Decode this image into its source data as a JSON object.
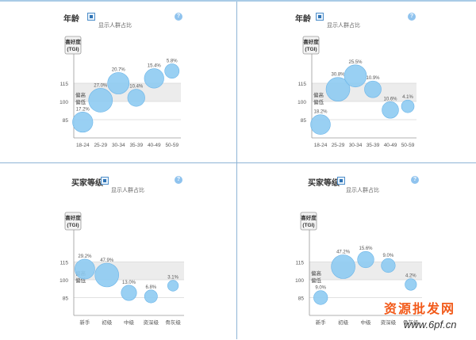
{
  "colors": {
    "bubble": "#8ecbf2",
    "bubble_stroke": "#6ab4e8",
    "band": "#ececec",
    "grid": "#d8d8d8",
    "watermark": "#f25a1a"
  },
  "watermark": {
    "cn": "资源批发网",
    "url": "www.6pf.cn"
  },
  "chart_data": [
    {
      "type": "scatter",
      "title": "年龄",
      "subtitle": "显示人群占比",
      "ylabel": "喜好度\n(TGI)",
      "ylabel_lines": [
        "喜好度",
        "(TGI)"
      ],
      "yticks": [
        85,
        100,
        115
      ],
      "band_labels": [
        "偏高",
        "偏低"
      ],
      "categories": [
        "18-24",
        "25-29",
        "30-34",
        "35-39",
        "40-49",
        "50-59"
      ],
      "tgi": [
        83,
        101,
        115,
        103,
        119,
        125
      ],
      "share_labels": [
        "17.2%",
        "27.0%",
        "20.7%",
        "10.4%",
        "15.4%",
        "5.8%"
      ],
      "share": [
        17.2,
        27.0,
        20.7,
        10.4,
        15.4,
        5.8
      ]
    },
    {
      "type": "scatter",
      "title": "年龄",
      "subtitle": "显示人群占比",
      "ylabel": "喜好度\n(TGI)",
      "ylabel_lines": [
        "喜好度",
        "(TGI)"
      ],
      "yticks": [
        85,
        100,
        115
      ],
      "band_labels": [
        "偏高",
        "偏低"
      ],
      "categories": [
        "18-24",
        "25-29",
        "30-34",
        "35-39",
        "40-49",
        "50-59"
      ],
      "tgi": [
        81,
        110,
        121,
        110,
        93,
        96
      ],
      "share_labels": [
        "18.2%",
        "30.8%",
        "25.5%",
        "10.9%",
        "10.6%",
        "4.1%"
      ],
      "share": [
        18.2,
        30.8,
        25.5,
        10.9,
        10.6,
        4.1
      ]
    },
    {
      "type": "scatter",
      "title": "买家等级",
      "subtitle": "显示人群占比",
      "ylabel": "喜好度\n(TGI)",
      "ylabel_lines": [
        "喜好度",
        "(TGI)"
      ],
      "yticks": [
        85,
        100,
        115
      ],
      "band_labels": [
        "偏高",
        "偏低"
      ],
      "categories": [
        "新手",
        "初级",
        "中级",
        "资深级",
        "骨灰级"
      ],
      "tgi": [
        109,
        104,
        89,
        86,
        95
      ],
      "share_labels": [
        "29.2%",
        "47.9%",
        "13.0%",
        "6.8%",
        "3.1%"
      ],
      "share": [
        29.2,
        47.9,
        13.0,
        6.8,
        3.1
      ]
    },
    {
      "type": "scatter",
      "title": "买家等级",
      "subtitle": "显示人群占比",
      "ylabel": "喜好度\n(TGI)",
      "ylabel_lines": [
        "喜好度",
        "(TGI)"
      ],
      "yticks": [
        85,
        100,
        115
      ],
      "band_labels": [
        "偏高",
        "偏低"
      ],
      "categories": [
        "新手",
        "初级",
        "中级",
        "资深级",
        "骨灰级"
      ],
      "tgi": [
        85,
        111,
        117,
        112,
        96
      ],
      "share_labels": [
        "9.0%",
        "47.2%",
        "15.6%",
        "9.0%",
        "4.2%"
      ],
      "share": [
        9.0,
        47.2,
        15.6,
        9.0,
        4.2
      ]
    }
  ]
}
